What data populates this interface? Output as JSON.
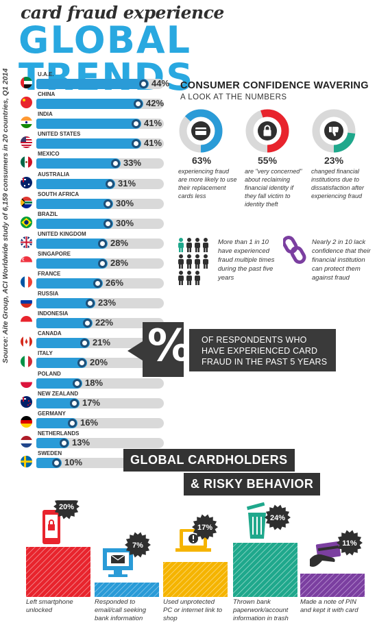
{
  "header": {
    "subtitle": "card fraud experience",
    "title": "GLOBAL TRENDS"
  },
  "source": "Source: Aite Group, ACI Worldwide study of 6,159 consumers in 20 countries, Q1 2014",
  "chart_data": {
    "type": "bar",
    "orientation": "horizontal",
    "categories": [
      "U.A.E.",
      "CHINA",
      "INDIA",
      "UNITED STATES",
      "MEXICO",
      "AUSTRALIA",
      "SOUTH AFRICA",
      "BRAZIL",
      "UNITED KINGDOM",
      "SINGAPORE",
      "FRANCE",
      "RUSSIA",
      "INDONESIA",
      "CANADA",
      "ITALY",
      "POLAND",
      "NEW ZEALAND",
      "GERMANY",
      "NETHERLANDS",
      "SWEDEN"
    ],
    "values": [
      44,
      42,
      41,
      41,
      33,
      31,
      30,
      30,
      28,
      28,
      26,
      23,
      22,
      21,
      20,
      18,
      17,
      16,
      13,
      10
    ],
    "labels": [
      "44%",
      "42%",
      "41%",
      "41%",
      "33%",
      "31%",
      "30%",
      "30%",
      "28%",
      "28%",
      "26%",
      "23%",
      "22%",
      "21%",
      "20%",
      "18%",
      "17%",
      "16%",
      "13%",
      "10%"
    ],
    "xlim": [
      0,
      50
    ],
    "bar_color": "#2a9bd7",
    "track_color": "#d9d9d9"
  },
  "confidence": {
    "title": "CONSUMER CONFIDENCE WAVERING",
    "subtitle": "A LOOK AT THE NUMBERS",
    "stats": [
      {
        "value": 63,
        "label": "63%",
        "desc": "experiencing fraud are more likely to use their replacement cards less",
        "color": "#2a9bd7",
        "icon": "credit-card-icon"
      },
      {
        "value": 55,
        "label": "55%",
        "desc": "are \"very concerned\" about reclaiming financial identity if they fall victim to identity theft",
        "color": "#e8242d",
        "icon": "lock-icon"
      },
      {
        "value": 23,
        "label": "23%",
        "desc": "changed financial institutions due to dissatisfaction after experiencing fraud",
        "color": "#1fa88c",
        "icon": "thumbs-down-icon"
      }
    ],
    "people_stat": "More than 1 in 10 have experienced fraud multiple times during the past five years",
    "chain_stat": "Nearly 2 in 10 lack confidence that their financial institution can protect them against fraud"
  },
  "callout": {
    "symbol": "%",
    "lines": [
      "OF RESPONDENTS WHO",
      "HAVE EXPERIENCED CARD",
      "FRAUD IN THE PAST 5 YEARS"
    ]
  },
  "risky": {
    "title_line1": "GLOBAL CARDHOLDERS",
    "title_line2": "& RISKY BEHAVIOR",
    "items": [
      {
        "value": 20,
        "label": "20%",
        "desc": "Left smartphone unlocked",
        "color": "#e8242d",
        "icon": "smartphone-lock-icon"
      },
      {
        "value": 7,
        "label": "7%",
        "desc": "Responded to email/call seeking bank information",
        "color": "#2a9bd7",
        "icon": "email-monitor-icon"
      },
      {
        "value": 17,
        "label": "17%",
        "desc": "Used unprotected PC or internet link to shop",
        "color": "#f5b400",
        "icon": "laptop-warning-icon"
      },
      {
        "value": 24,
        "label": "24%",
        "desc": "Thrown bank paperwork/account information in trash",
        "color": "#1fa88c",
        "icon": "trash-can-icon"
      },
      {
        "value": 11,
        "label": "11%",
        "desc": "Made a note of PIN and kept it with card",
        "color": "#7b3fa0",
        "icon": "card-in-hand-icon"
      }
    ]
  }
}
